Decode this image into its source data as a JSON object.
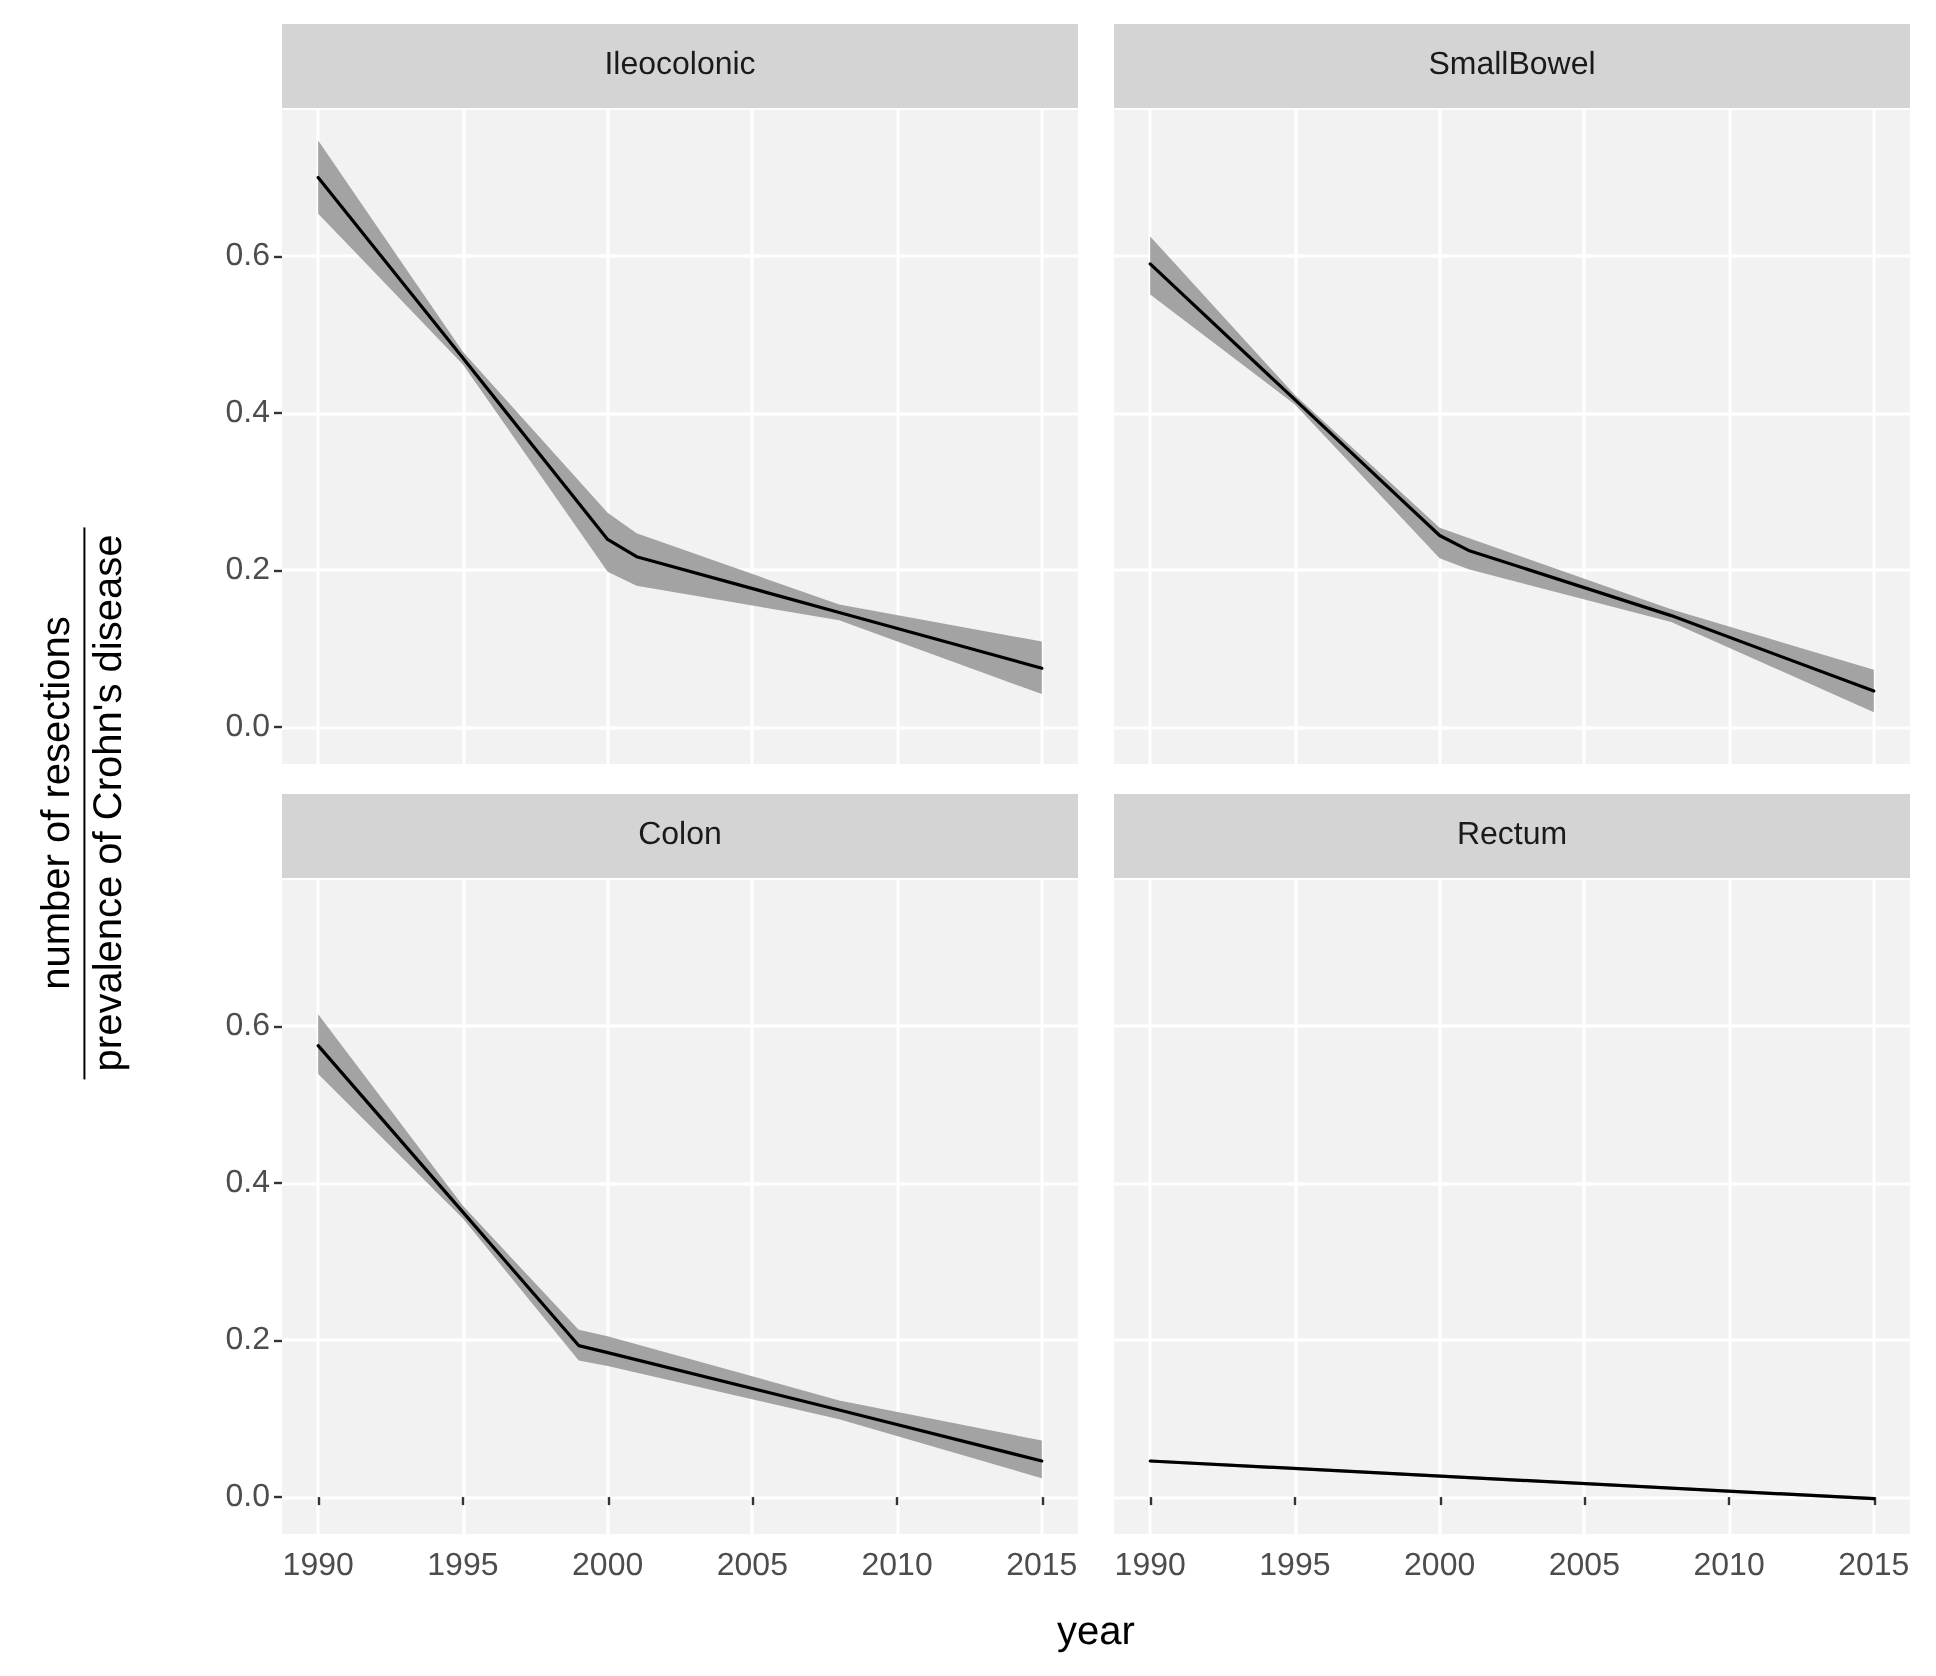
{
  "chart_data": [
    {
      "type": "line",
      "title": "Ileocolonic",
      "ylabel": "number of resections\nprevalence of Crohn's disease",
      "x": [
        1990,
        1995,
        2000,
        2001,
        2008,
        2015
      ],
      "series": [
        {
          "color": "#000000",
          "values": [
            0.7,
            0.47,
            0.239,
            0.217,
            0.146,
            0.075
          ],
          "lower": [
            0.654,
            0.462,
            0.198,
            0.18,
            0.136,
            0.042
          ],
          "upper": [
            0.747,
            0.478,
            0.273,
            0.247,
            0.156,
            0.109
          ]
        }
      ],
      "xlim": [
        1988.75,
        2016.25
      ],
      "xticks": [
        1990,
        1995,
        2000,
        2005,
        2010,
        2015
      ],
      "ylim": [
        -0.047,
        0.786
      ],
      "yticks": [
        {
          "value": 0,
          "label": "0.0"
        },
        0.2,
        0.4,
        0.6
      ],
      "grid": true,
      "tick_labels": "y"
    },
    {
      "type": "line",
      "title": "SmallBowel",
      "x": [
        1990,
        1995,
        2000,
        2001,
        2008,
        2015
      ],
      "series": [
        {
          "color": "#000000",
          "values": [
            0.59,
            0.417,
            0.244,
            0.225,
            0.142,
            0.046
          ],
          "lower": [
            0.551,
            0.411,
            0.215,
            0.201,
            0.134,
            0.019
          ],
          "upper": [
            0.625,
            0.423,
            0.254,
            0.241,
            0.15,
            0.073
          ]
        }
      ],
      "xlim": [
        1988.75,
        2016.25
      ],
      "xticks": [
        1990,
        1995,
        2000,
        2005,
        2010,
        2015
      ],
      "ylim": [
        -0.047,
        0.786
      ],
      "yticks": [
        0,
        0.2,
        0.4,
        0.6
      ],
      "grid": true,
      "tick_labels": false
    },
    {
      "type": "line",
      "title": "Colon",
      "xlabel": "year",
      "x": [
        1990,
        1995,
        1999,
        2000,
        2008,
        2015
      ],
      "series": [
        {
          "color": "#000000",
          "values": [
            0.575,
            0.363,
            0.193,
            0.184,
            0.111,
            0.046
          ],
          "lower": [
            0.539,
            0.355,
            0.174,
            0.167,
            0.099,
            0.024
          ],
          "upper": [
            0.615,
            0.371,
            0.213,
            0.205,
            0.123,
            0.072
          ]
        }
      ],
      "xlim": [
        1988.75,
        2016.25
      ],
      "xticks": [
        1990,
        1995,
        2000,
        2005,
        2010,
        2015
      ],
      "ylim": [
        -0.047,
        0.786
      ],
      "yticks": [
        {
          "value": 0,
          "label": "0.0"
        },
        0.2,
        0.4,
        0.6
      ],
      "grid": true
    },
    {
      "type": "line",
      "title": "Rectum",
      "x": [
        1990,
        2015
      ],
      "series": [
        {
          "color": "#000000",
          "values": [
            0.046,
            -0.002
          ],
          "lower": [
            0.044,
            -0.004
          ],
          "upper": [
            0.048,
            0.0
          ]
        }
      ],
      "xlim": [
        1988.75,
        2016.25
      ],
      "xticks": [
        1990,
        1995,
        2000,
        2005,
        2010,
        2015
      ],
      "ylim": [
        -0.047,
        0.786
      ],
      "yticks": [
        0,
        0.2,
        0.4,
        0.6
      ],
      "grid": true,
      "tick_labels": "x"
    }
  ]
}
